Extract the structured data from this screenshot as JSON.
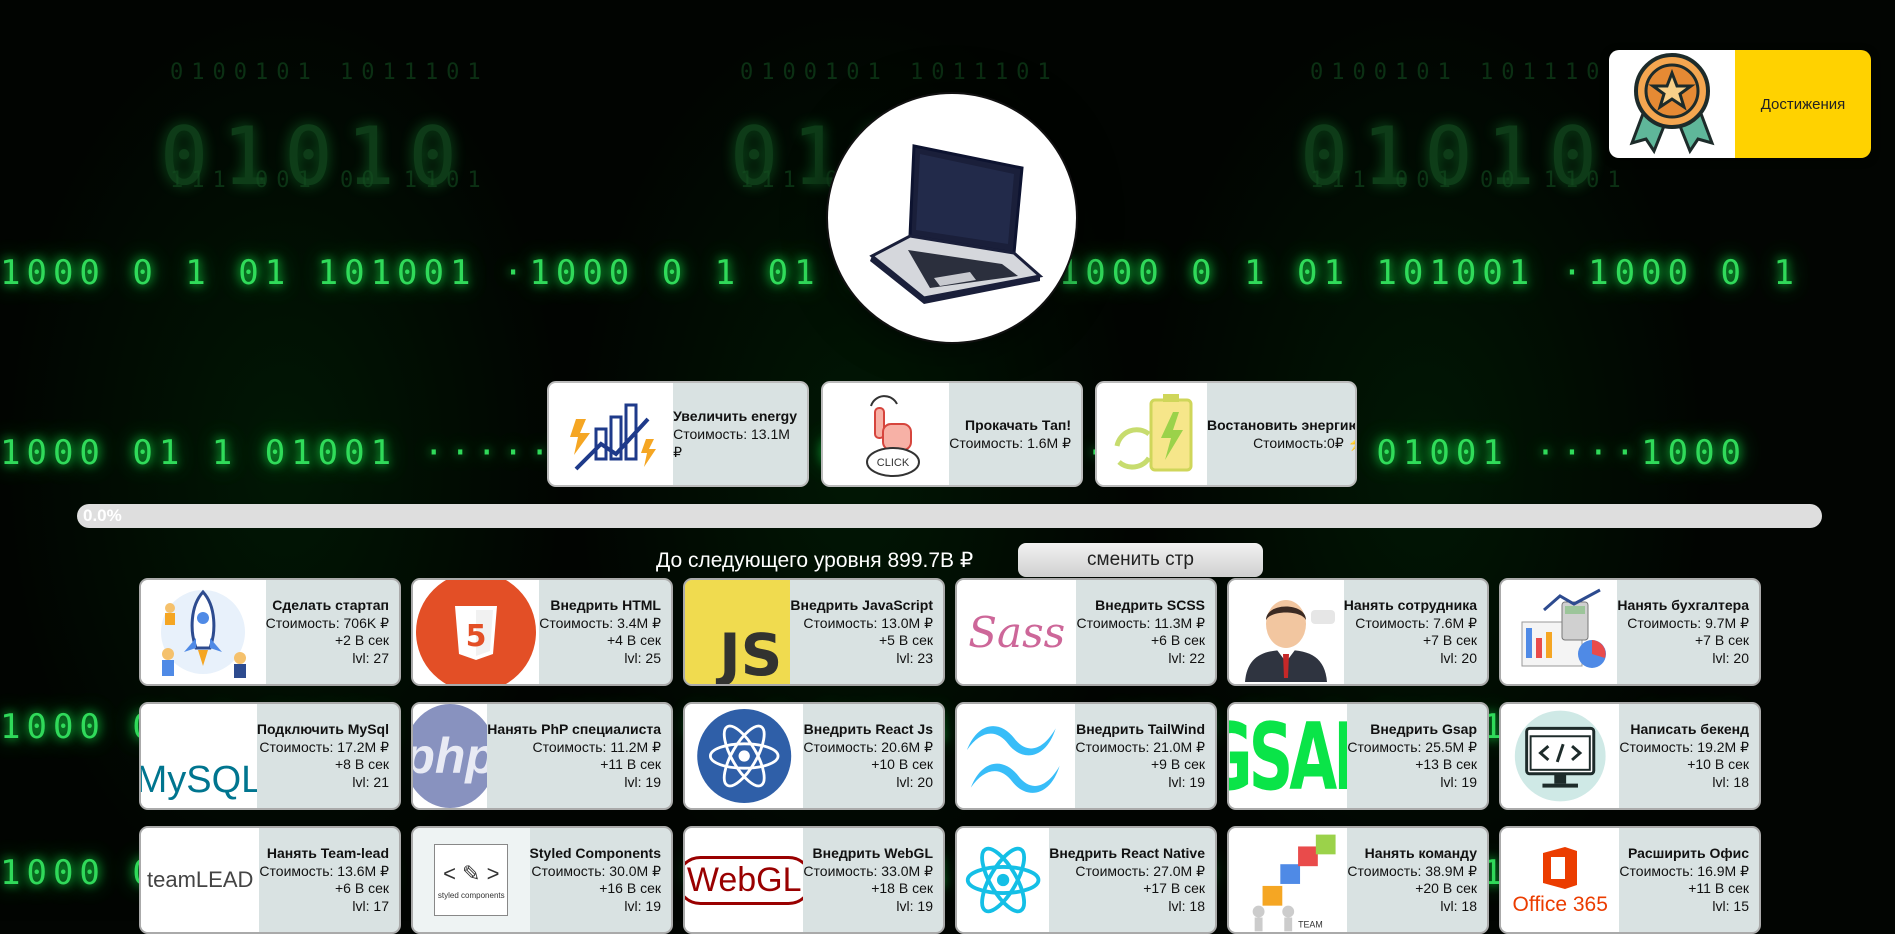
{
  "achievements": {
    "label": "Достижения"
  },
  "upgrades": [
    {
      "title": "Увеличить energy",
      "cost": "Стоимость: 13.1M ₽",
      "icon": "energy-chart-icon"
    },
    {
      "title": "Прокачать Тап!",
      "cost": "Стоимость: 1.6M ₽",
      "icon": "click-hand-icon",
      "icon_text": "CLICK"
    },
    {
      "title": "Востановить энергию!",
      "cost": "Стоимость:0₽ ⚡",
      "icon": "battery-recharge-icon"
    }
  ],
  "progress": {
    "text": "0.0%",
    "value": 0.0
  },
  "next_level": "До следующего уровня 899.7B ₽",
  "switch_button": "сменить стр",
  "cards": [
    {
      "title": "Сделать стартап",
      "cost": "Стоимость: 706K ₽",
      "rate": "+2 В сек",
      "lvl": "lvl: 27",
      "icon": "rocket-icon"
    },
    {
      "title": "Внедрить HTML",
      "cost": "Стоимость: 3.4M ₽",
      "rate": "+4 В сек",
      "lvl": "lvl: 25",
      "icon": "html5-icon",
      "icon_text": "5"
    },
    {
      "title": "Внедрить JavaScript",
      "cost": "Стоимость: 13.0M ₽",
      "rate": "+5 В сек",
      "lvl": "lvl: 23",
      "icon": "js-icon",
      "icon_text": "JS"
    },
    {
      "title": "Внедрить SCSS",
      "cost": "Стоимость: 11.3M ₽",
      "rate": "+6 В сек",
      "lvl": "lvl: 22",
      "icon": "sass-icon",
      "icon_text": "Sass"
    },
    {
      "title": "Нанять сотрудника",
      "cost": "Стоимость: 7.6M ₽",
      "rate": "+7 В сек",
      "lvl": "lvl: 20",
      "icon": "employee-icon"
    },
    {
      "title": "Нанять бухгалтера",
      "cost": "Стоимость: 9.7M ₽",
      "rate": "+7 В сек",
      "lvl": "lvl: 20",
      "icon": "accountant-icon"
    },
    {
      "title": "Подключить MySql",
      "cost": "Стоимость: 17.2M ₽",
      "rate": "+8 В сек",
      "lvl": "lvl: 21",
      "icon": "mysql-icon",
      "icon_text": "MySQL"
    },
    {
      "title": "Нанять PhP специалиста",
      "cost": "Стоимость: 11.2M ₽",
      "rate": "+11 В сек",
      "lvl": "lvl: 19",
      "icon": "php-icon",
      "icon_text": "php"
    },
    {
      "title": "Внедрить React Js",
      "cost": "Стоимость: 20.6M ₽",
      "rate": "+10 В сек",
      "lvl": "lvl: 20",
      "icon": "react-icon"
    },
    {
      "title": "Внедрить TailWind",
      "cost": "Стоимость: 21.0M ₽",
      "rate": "+9 В сек",
      "lvl": "lvl: 19",
      "icon": "tailwind-icon"
    },
    {
      "title": "Внедрить Gsap",
      "cost": "Стоимость: 25.5M ₽",
      "rate": "+13 В сек",
      "lvl": "lvl: 19",
      "icon": "gsap-icon",
      "icon_text": "GSAP"
    },
    {
      "title": "Написать бекенд",
      "cost": "Стоимость: 19.2M ₽",
      "rate": "+10 В сек",
      "lvl": "lvl: 18",
      "icon": "code-monitor-icon"
    },
    {
      "title": "Нанять Team-lead",
      "cost": "Стоимость: 13.6M ₽",
      "rate": "+6 В сек",
      "lvl": "lvl: 17",
      "icon": "teamlead-icon",
      "icon_text": "teamLEAD"
    },
    {
      "title": "Styled Components",
      "cost": "Стоимость: 30.0M ₽",
      "rate": "+16 В сек",
      "lvl": "lvl: 19",
      "icon": "styled-components-icon",
      "icon_text": "styled components"
    },
    {
      "title": "Внедрить WebGL",
      "cost": "Стоимость: 33.0M ₽",
      "rate": "+18 В сек",
      "lvl": "lvl: 19",
      "icon": "webgl-icon",
      "icon_text": "WebGL"
    },
    {
      "title": "Внедрить React Native",
      "cost": "Стоимость: 27.0M ₽",
      "rate": "+17 В сек",
      "lvl": "lvl: 18",
      "icon": "react-native-icon"
    },
    {
      "title": "Нанять команду",
      "cost": "Стоимость: 38.9M ₽",
      "rate": "+20 В сек",
      "lvl": "lvl: 18",
      "icon": "team-icon",
      "icon_text": "TEAM"
    },
    {
      "title": "Расширить Офис",
      "cost": "Стоимость: 16.9M ₽",
      "rate": "+11 В сек",
      "lvl": "lvl: 15",
      "icon": "office365-icon",
      "icon_text": "Office 365"
    }
  ],
  "colors": {
    "accent_yellow": "#ffd200",
    "matrix_green": "#39ff6a",
    "card_bg": "#d9e2e2"
  }
}
